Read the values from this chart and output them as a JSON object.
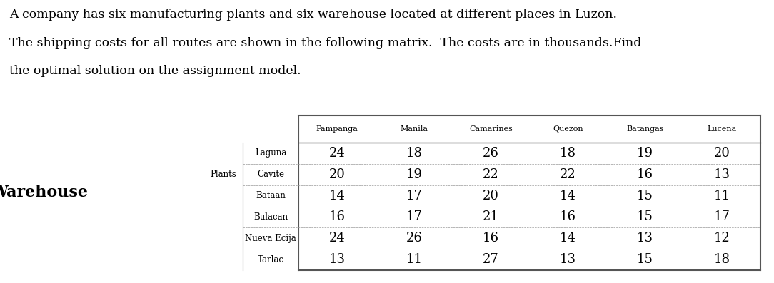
{
  "title_line1": "A company has six manufacturing plants and six warehouse located at different places in Luzon.",
  "title_line2": "The shipping costs for all routes are shown in the following matrix.  The costs are in thousands.Find",
  "title_line3": "the optimal solution on the assignment model.",
  "warehouse_label": "Warehouse",
  "plants_label": "Plants",
  "col_headers": [
    "Pampanga",
    "Manila",
    "Camarines",
    "Quezon",
    "Batangas",
    "Lucena"
  ],
  "row_headers": [
    "Laguna",
    "Cavite",
    "Bataan",
    "Bulacan",
    "Nueva Ecija",
    "Tarlac"
  ],
  "data": [
    [
      24,
      18,
      26,
      18,
      19,
      20
    ],
    [
      20,
      19,
      22,
      22,
      16,
      13
    ],
    [
      14,
      17,
      20,
      14,
      15,
      11
    ],
    [
      16,
      17,
      21,
      16,
      15,
      17
    ],
    [
      24,
      26,
      16,
      14,
      13,
      12
    ],
    [
      13,
      11,
      27,
      13,
      15,
      18
    ]
  ],
  "bg_color": "#ffffff",
  "text_color": "#000000",
  "title_fontsize": 12.5,
  "header_fontsize": 8.0,
  "cell_fontsize": 13,
  "row_label_fontsize": 8.5,
  "plants_fontsize": 8.5,
  "warehouse_fontsize": 16
}
